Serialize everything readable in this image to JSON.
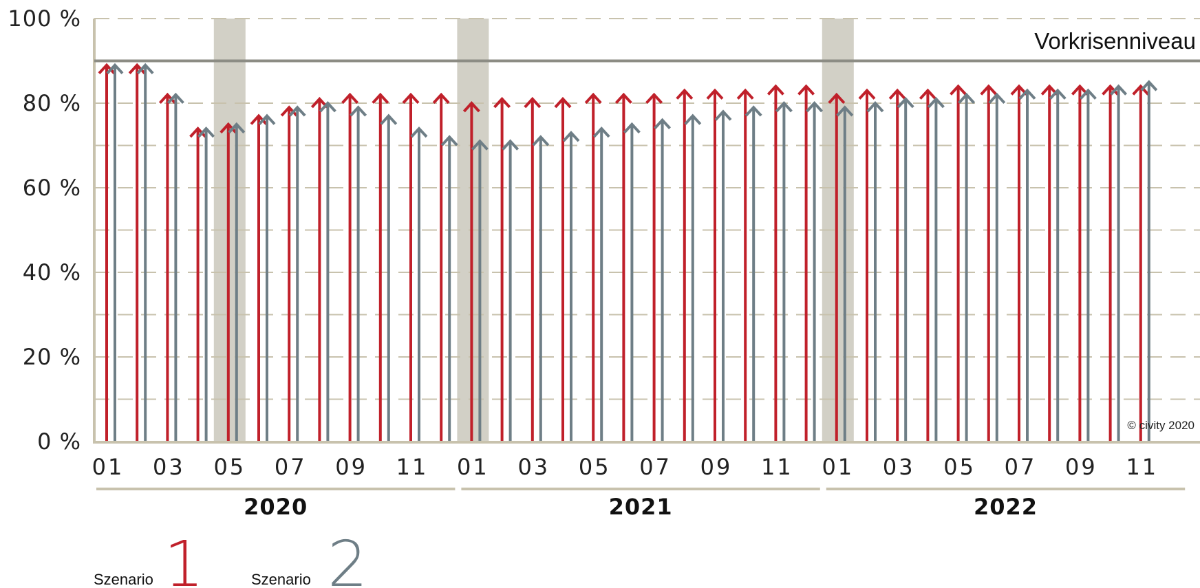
{
  "colors": {
    "scenario1": "#c0202a",
    "scenario2": "#6e7e86",
    "grid": "#c8c2ad",
    "axis": "#c8c2ad",
    "reference": "#8c8c84",
    "shade": "#d2d0c6"
  },
  "legend": [
    {
      "label": "Szenario",
      "number": "1",
      "color": "#c0202a"
    },
    {
      "label": "Szenario",
      "number": "2",
      "color": "#6e7e86"
    }
  ],
  "copyright": "© civity 2020",
  "chart_data": {
    "type": "bar",
    "title": "",
    "xlabel": "",
    "ylabel": "",
    "ylim": [
      0,
      100
    ],
    "y_tick_labels": [
      "0 %",
      "20 %",
      "40 %",
      "60 %",
      "80 %",
      "100 %"
    ],
    "grid": "dashed horizontal every 10 %",
    "reference_line": {
      "value": 90,
      "label": "Vorkrisenniveau"
    },
    "years": [
      "2020",
      "2021",
      "2022"
    ],
    "x_tick_labels": [
      "01",
      "03",
      "05",
      "07",
      "09",
      "11"
    ],
    "categories": [
      "2020-01",
      "2020-02",
      "2020-03",
      "2020-04",
      "2020-05",
      "2020-06",
      "2020-07",
      "2020-08",
      "2020-09",
      "2020-10",
      "2020-11",
      "2020-12",
      "2021-01",
      "2021-02",
      "2021-03",
      "2021-04",
      "2021-05",
      "2021-06",
      "2021-07",
      "2021-08",
      "2021-09",
      "2021-10",
      "2021-11",
      "2021-12",
      "2022-01",
      "2022-02",
      "2022-03",
      "2022-04",
      "2022-05",
      "2022-06",
      "2022-07",
      "2022-08",
      "2022-09",
      "2022-10",
      "2022-11"
    ],
    "shaded_months": [
      "2020-05",
      "2021-01",
      "2022-01"
    ],
    "series": [
      {
        "name": "Szenario 1",
        "color": "#c0202a",
        "values": [
          89,
          89,
          82,
          74,
          75,
          77,
          79,
          81,
          82,
          82,
          82,
          82,
          80,
          81,
          81,
          81,
          82,
          82,
          82,
          83,
          83,
          83,
          84,
          84,
          82,
          83,
          83,
          83,
          84,
          84,
          84,
          84,
          84,
          84,
          84
        ]
      },
      {
        "name": "Szenario 2",
        "color": "#6e7e86",
        "values": [
          89,
          89,
          82,
          74,
          75,
          77,
          79,
          80,
          79,
          77,
          74,
          72,
          71,
          71,
          72,
          73,
          74,
          75,
          76,
          77,
          78,
          79,
          80,
          80,
          79,
          80,
          81,
          81,
          82,
          82,
          83,
          83,
          83,
          84,
          85
        ]
      }
    ]
  }
}
